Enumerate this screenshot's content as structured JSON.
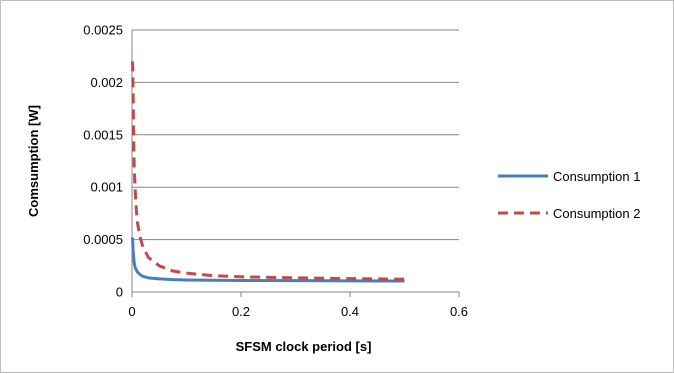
{
  "chart_data": {
    "type": "line",
    "xlabel": "SFSM clock period [s]",
    "ylabel": "Comsumption [W]",
    "xlim": [
      0,
      0.6
    ],
    "ylim": [
      0,
      0.0025
    ],
    "x_ticks": [
      "0",
      "0.2",
      "0.4",
      "0.6"
    ],
    "y_ticks": [
      "0",
      "0.0005",
      "0.001",
      "0.0015",
      "0.002",
      "0.0025"
    ],
    "grid": "horizontal",
    "legend_position": "right",
    "series": [
      {
        "name": "Consumption 1",
        "color": "#4a7ebb",
        "style": "solid",
        "x": [
          0.001,
          0.002,
          0.004,
          0.006,
          0.01,
          0.015,
          0.02,
          0.03,
          0.05,
          0.075,
          0.1,
          0.15,
          0.2,
          0.3,
          0.4,
          0.5
        ],
        "y": [
          0.00052,
          0.0004,
          0.00028,
          0.00023,
          0.00019,
          0.000165,
          0.00015,
          0.000135,
          0.000125,
          0.000118,
          0.000115,
          0.000112,
          0.00011,
          0.000108,
          0.000106,
          0.000105
        ]
      },
      {
        "name": "Consumption 2",
        "color": "#be4b48",
        "style": "dashed",
        "x": [
          0.001,
          0.002,
          0.003,
          0.004,
          0.006,
          0.008,
          0.01,
          0.015,
          0.02,
          0.03,
          0.05,
          0.075,
          0.1,
          0.15,
          0.2,
          0.3,
          0.4,
          0.5
        ],
        "y": [
          0.0022,
          0.0019,
          0.0015,
          0.0012,
          0.00095,
          0.00078,
          0.00066,
          0.00052,
          0.00043,
          0.00033,
          0.00025,
          0.0002,
          0.00018,
          0.000155,
          0.000145,
          0.000135,
          0.000128,
          0.000122
        ]
      }
    ]
  }
}
